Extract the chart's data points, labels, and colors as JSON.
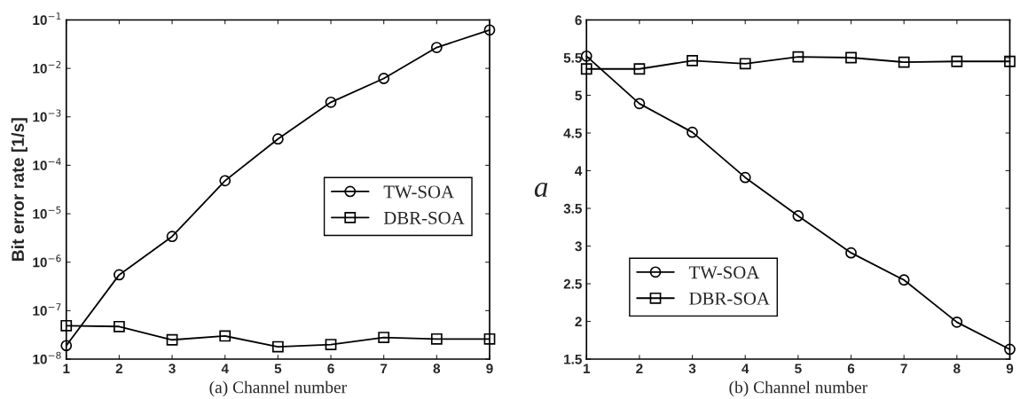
{
  "chart_data": [
    {
      "type": "line",
      "xlabel": "(a) Channel number",
      "ylabel": "Bit error rate [1/s]",
      "log": "y",
      "x": [
        1,
        2,
        3,
        4,
        5,
        6,
        7,
        8,
        9
      ],
      "series": [
        {
          "name": "TW-SOA",
          "color": "#000000",
          "marker": "circle",
          "values": [
            1.9e-08,
            5.5e-07,
            3.4e-06,
            4.8e-05,
            0.00035,
            0.002,
            0.0062,
            0.027,
            0.062
          ]
        },
        {
          "name": "DBR-SOA",
          "color": "#000000",
          "marker": "square",
          "values": [
            4.9e-08,
            4.7e-08,
            2.5e-08,
            3e-08,
            1.8e-08,
            2e-08,
            2.8e-08,
            2.6e-08,
            2.6e-08
          ]
        }
      ],
      "xlim": [
        1,
        9
      ],
      "xticks": [
        1,
        2,
        3,
        4,
        5,
        6,
        7,
        8,
        9
      ],
      "ylim": [
        1e-08,
        0.1
      ],
      "yticks": [
        {
          "value": 1e-08,
          "label": "10$^{−8}$"
        },
        {
          "value": 1e-07,
          "label": "10$^{−7}$"
        },
        {
          "value": 1e-06,
          "label": "10$^{−6}$"
        },
        {
          "value": 1e-05,
          "label": "10$^{−5}$"
        },
        {
          "value": 0.0001,
          "label": "10$^{−4}$"
        },
        {
          "value": 0.001,
          "label": "10$^{−3}$"
        },
        {
          "value": 0.01,
          "label": "10$^{−2}$"
        },
        {
          "value": 0.1,
          "label": "10$^{−1}$"
        }
      ],
      "legend": "center right",
      "line_style": "solid",
      "grid": false
    },
    {
      "type": "line",
      "xlabel": "(b) Channel number",
      "ylabel": "a",
      "x": [
        1,
        2,
        3,
        4,
        5,
        6,
        7,
        8,
        9
      ],
      "series": [
        {
          "name": "TW-SOA",
          "color": "#000000",
          "marker": "circle",
          "values": [
            5.52,
            4.89,
            4.51,
            3.91,
            3.4,
            2.91,
            2.55,
            1.99,
            1.63
          ]
        },
        {
          "name": "DBR-SOA",
          "color": "#000000",
          "marker": "square",
          "values": [
            5.35,
            5.35,
            5.46,
            5.42,
            5.51,
            5.5,
            5.44,
            5.45,
            5.45
          ]
        }
      ],
      "xlim": [
        1,
        9
      ],
      "xticks": [
        1,
        2,
        3,
        4,
        5,
        6,
        7,
        8,
        9
      ],
      "ylim": [
        1.5,
        6
      ],
      "yticks": [
        1.5,
        2,
        2.5,
        3,
        3.5,
        4,
        4.5,
        5,
        5.5,
        6
      ],
      "legend": "lower left",
      "line_style": "solid",
      "grid": false
    }
  ]
}
